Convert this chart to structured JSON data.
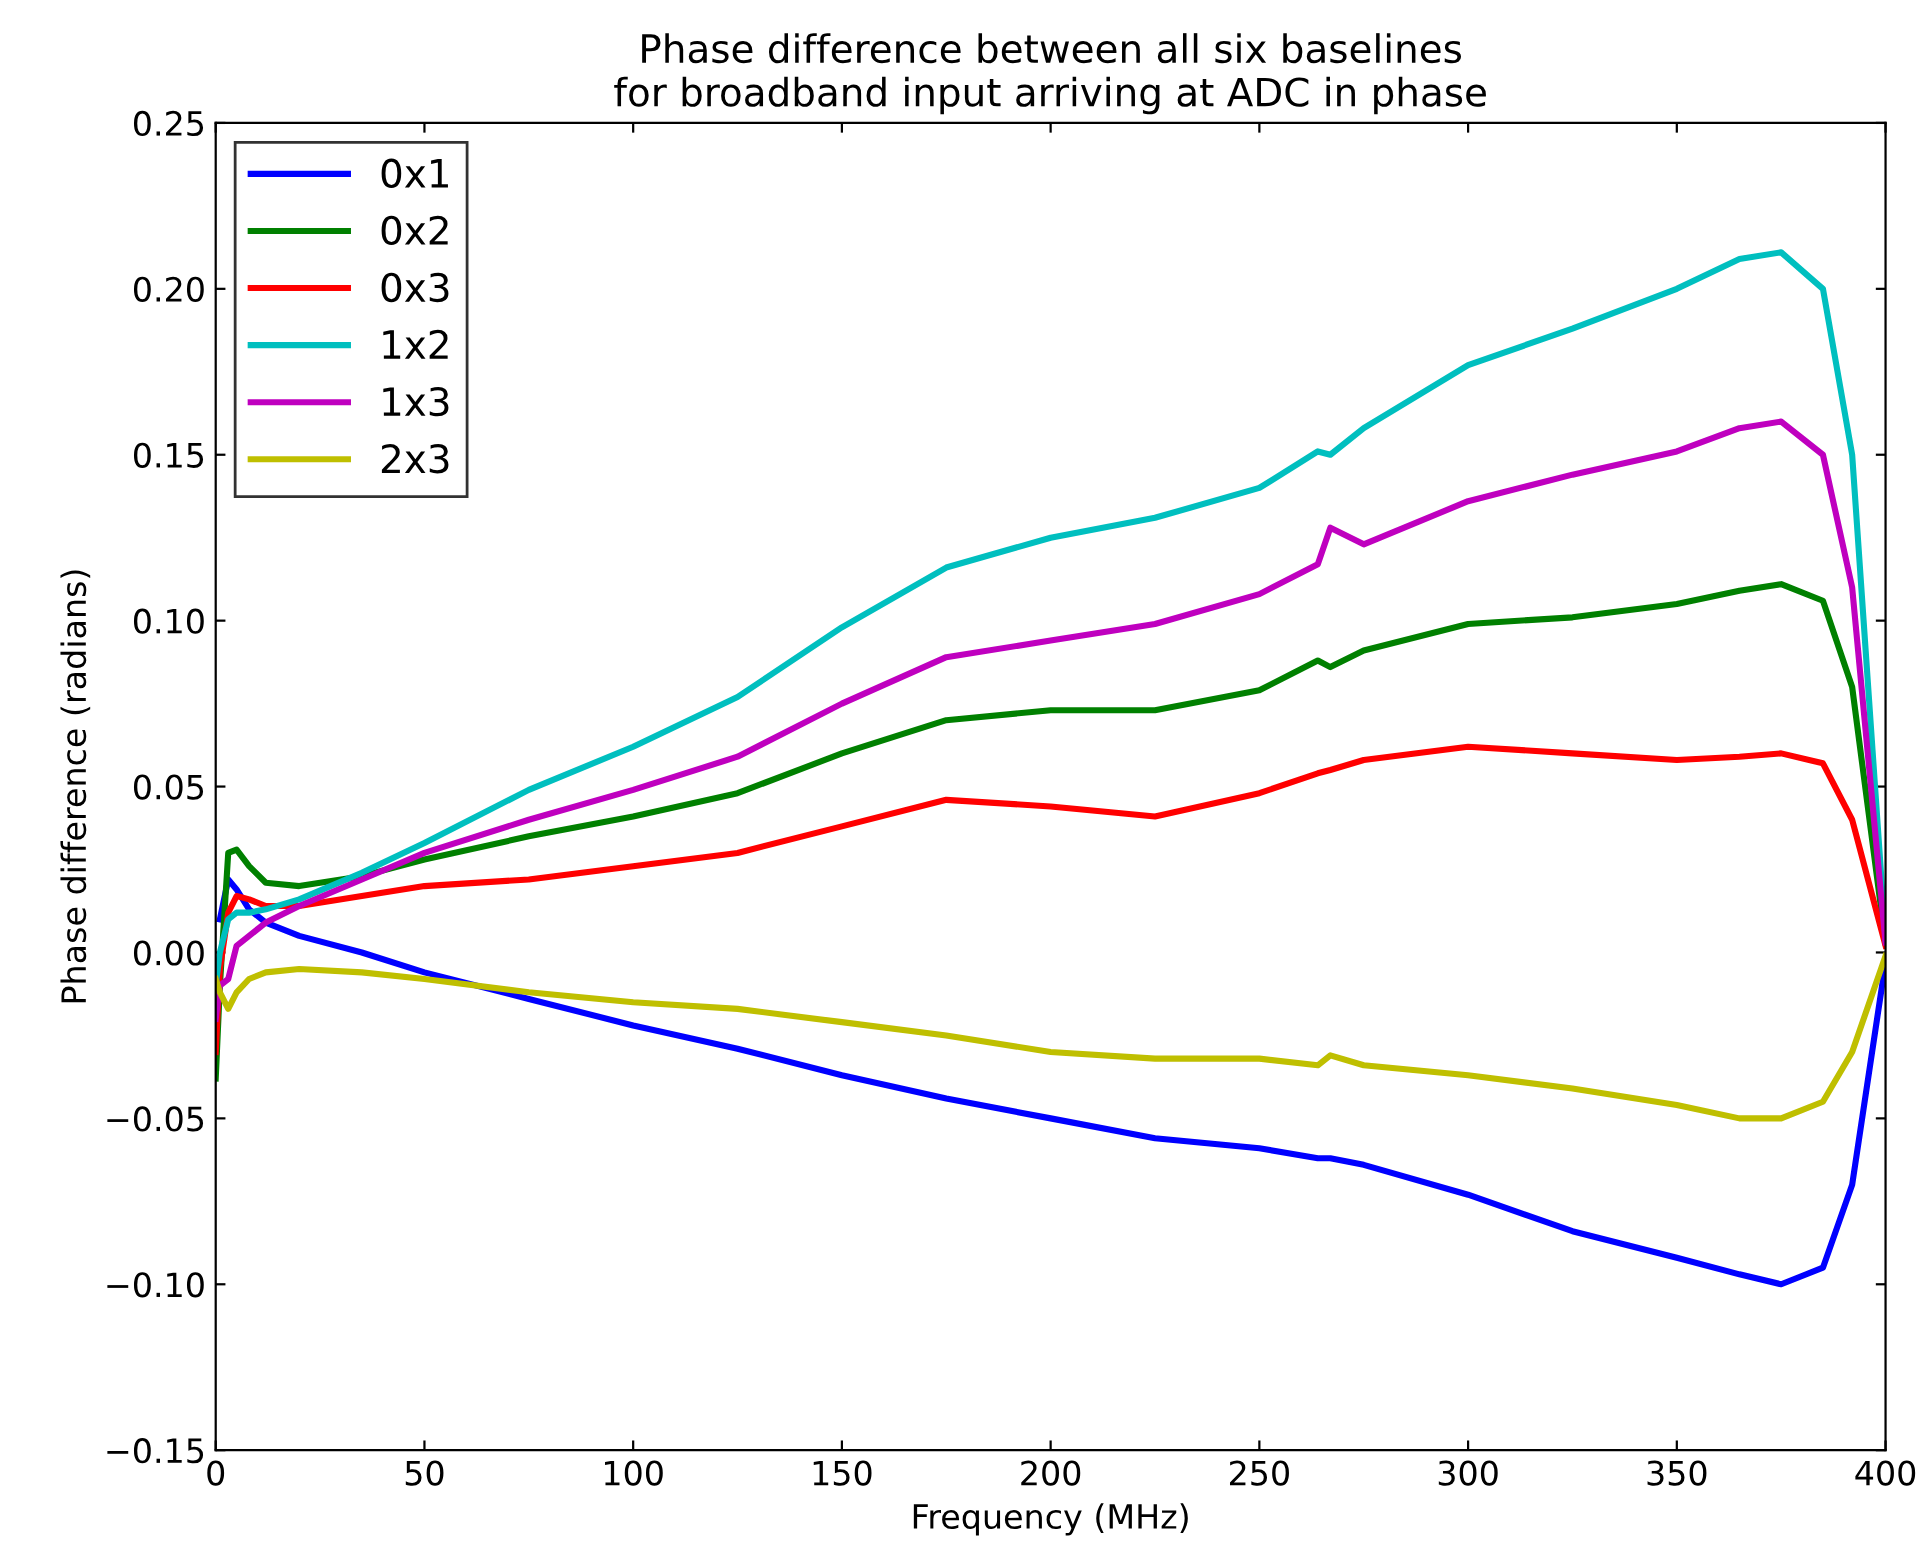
{
  "chart_data": {
    "type": "line",
    "title": "Phase difference between all six baselines\nfor broadband input arriving at ADC in phase",
    "xlabel": "Frequency (MHz)",
    "ylabel": "Phase difference (radians)",
    "x": [
      0,
      1,
      3,
      5,
      8,
      12,
      20,
      35,
      50,
      75,
      100,
      125,
      150,
      175,
      200,
      225,
      250,
      264,
      267,
      275,
      300,
      325,
      350,
      365,
      375,
      385,
      392,
      400
    ],
    "series": [
      {
        "name": "0x1",
        "color": "#0000ff",
        "values": [
          null,
          0.01,
          0.022,
          0.019,
          0.013,
          0.009,
          0.005,
          0.0,
          -0.006,
          -0.014,
          -0.022,
          -0.029,
          -0.037,
          -0.044,
          -0.05,
          -0.056,
          -0.059,
          -0.062,
          -0.062,
          -0.064,
          -0.073,
          -0.084,
          -0.092,
          -0.097,
          -0.1,
          -0.095,
          -0.07,
          -0.003
        ]
      },
      {
        "name": "0x2",
        "color": "#008000",
        "values": [
          -0.038,
          -0.01,
          0.03,
          0.031,
          0.026,
          0.021,
          0.02,
          0.023,
          0.028,
          0.035,
          0.041,
          0.048,
          0.06,
          0.07,
          0.073,
          0.073,
          0.079,
          0.088,
          0.086,
          0.091,
          0.099,
          0.101,
          0.105,
          0.109,
          0.111,
          0.106,
          0.08,
          0.003
        ]
      },
      {
        "name": "0x3",
        "color": "#ff0000",
        "values": [
          -0.03,
          -0.005,
          0.012,
          0.017,
          0.016,
          0.014,
          0.014,
          0.017,
          0.02,
          0.022,
          0.026,
          0.03,
          0.038,
          0.046,
          0.044,
          0.041,
          0.048,
          0.054,
          0.055,
          0.058,
          0.062,
          0.06,
          0.058,
          0.059,
          0.06,
          0.057,
          0.04,
          0.002
        ]
      },
      {
        "name": "1x2",
        "color": "#00bfbf",
        "values": [
          -0.01,
          0.0,
          0.01,
          0.012,
          0.012,
          0.013,
          0.016,
          0.024,
          0.033,
          0.049,
          0.062,
          0.077,
          0.098,
          0.116,
          0.125,
          0.131,
          0.14,
          0.151,
          0.15,
          0.158,
          0.177,
          0.188,
          0.2,
          0.209,
          0.211,
          0.2,
          0.15,
          0.004
        ]
      },
      {
        "name": "1x3",
        "color": "#bf00bf",
        "values": [
          -0.02,
          -0.01,
          -0.008,
          0.002,
          0.005,
          0.009,
          0.014,
          0.022,
          0.03,
          0.04,
          0.049,
          0.059,
          0.075,
          0.089,
          0.094,
          0.099,
          0.108,
          0.117,
          0.128,
          0.123,
          0.136,
          0.144,
          0.151,
          0.158,
          0.16,
          0.15,
          0.11,
          0.003
        ]
      },
      {
        "name": "2x3",
        "color": "#bfbf00",
        "values": [
          -0.008,
          -0.012,
          -0.017,
          -0.012,
          -0.008,
          -0.006,
          -0.005,
          -0.006,
          -0.008,
          -0.012,
          -0.015,
          -0.017,
          -0.021,
          -0.025,
          -0.03,
          -0.032,
          -0.032,
          -0.034,
          -0.031,
          -0.034,
          -0.037,
          -0.041,
          -0.046,
          -0.05,
          -0.05,
          -0.045,
          -0.03,
          -0.001
        ]
      }
    ],
    "xlim": [
      0,
      400
    ],
    "xticks": [
      0,
      50,
      100,
      150,
      200,
      250,
      300,
      350,
      400
    ],
    "ylim": [
      -0.15,
      0.25
    ],
    "yticks": [
      {
        "value": -0.15,
        "label": "−0.15"
      },
      {
        "value": -0.1,
        "label": "−0.10"
      },
      {
        "value": -0.05,
        "label": "−0.05"
      },
      {
        "value": 0,
        "label": "0.00"
      },
      {
        "value": 0.05,
        "label": "0.05"
      },
      {
        "value": 0.1,
        "label": "0.10"
      },
      {
        "value": 0.15,
        "label": "0.15"
      },
      {
        "value": 0.2,
        "label": "0.20"
      },
      {
        "value": 0.25,
        "label": "0.25"
      }
    ],
    "grid": false,
    "legend": "top left",
    "marker": "none",
    "line_style": "solid"
  }
}
